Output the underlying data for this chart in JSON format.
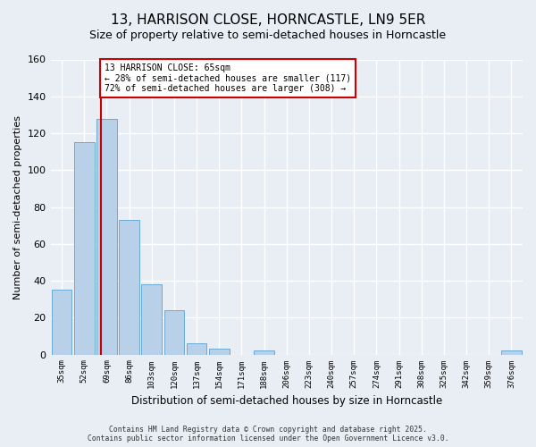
{
  "title": "13, HARRISON CLOSE, HORNCASTLE, LN9 5ER",
  "subtitle": "Size of property relative to semi-detached houses in Horncastle",
  "bar_values": [
    35,
    115,
    128,
    73,
    38,
    24,
    6,
    3,
    0,
    2,
    0,
    0,
    0,
    0,
    0,
    0,
    0,
    0,
    0,
    0,
    2
  ],
  "ylim": [
    0,
    160
  ],
  "ylabel": "Number of semi-detached properties",
  "xlabel": "Distribution of semi-detached houses by size in Horncastle",
  "bar_color": "#b8d0e8",
  "bar_edge_color": "#6aaad4",
  "vline_color": "#cc0000",
  "annotation_title": "13 HARRISON CLOSE: 65sqm",
  "annotation_line1": "← 28% of semi-detached houses are smaller (117)",
  "annotation_line2": "72% of semi-detached houses are larger (308) →",
  "annotation_box_color": "#cc0000",
  "footer_line1": "Contains HM Land Registry data © Crown copyright and database right 2025.",
  "footer_line2": "Contains public sector information licensed under the Open Government Licence v3.0.",
  "background_color": "#e8eef4",
  "grid_color": "#ffffff",
  "title_fontsize": 11,
  "subtitle_fontsize": 9,
  "tick_labels": [
    "35sqm",
    "52sqm",
    "69sqm",
    "86sqm",
    "103sqm",
    "120sqm",
    "137sqm",
    "154sqm",
    "171sqm",
    "188sqm",
    "206sqm",
    "223sqm",
    "240sqm",
    "257sqm",
    "274sqm",
    "291sqm",
    "308sqm",
    "325sqm",
    "342sqm",
    "359sqm",
    "376sqm"
  ],
  "vline_bar_idx": 1.76,
  "yticks": [
    0,
    20,
    40,
    60,
    80,
    100,
    120,
    140,
    160
  ]
}
